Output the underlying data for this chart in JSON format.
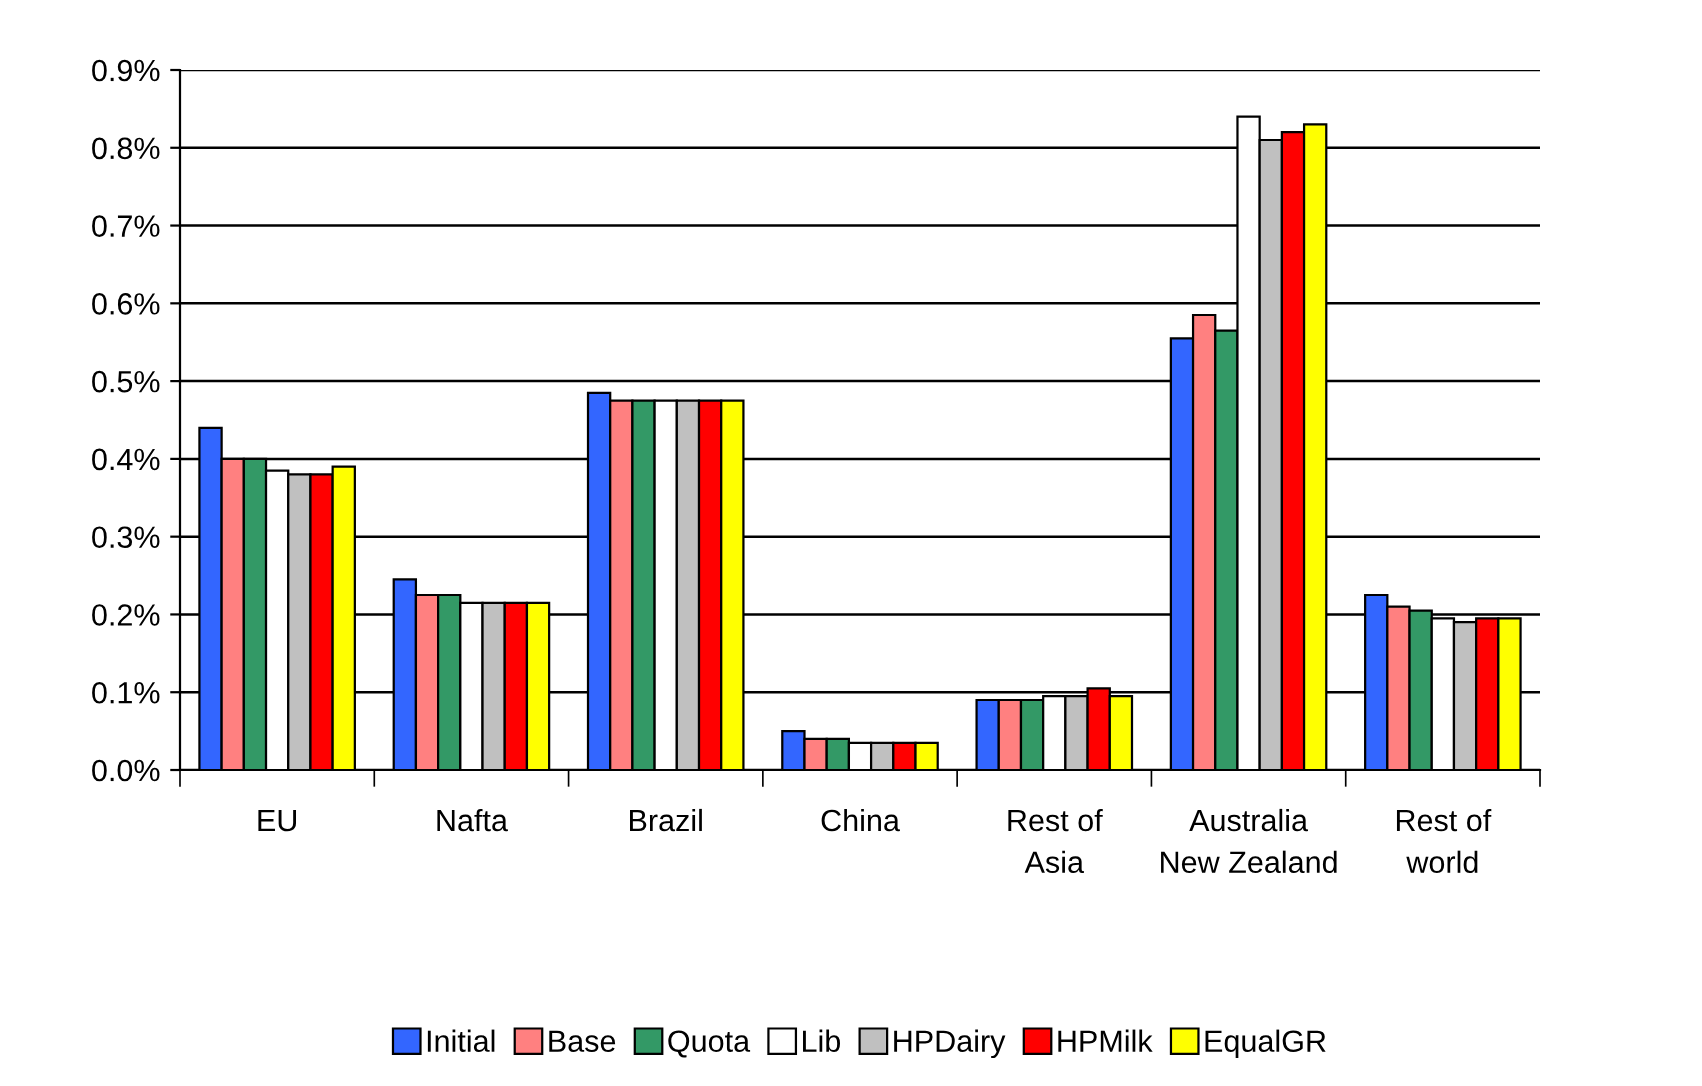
{
  "chart_data": {
    "type": "bar",
    "categories": [
      "EU",
      "Nafta",
      "Brazil",
      "China",
      "Rest of\nAsia",
      "Australia\nNew Zealand",
      "Rest of\nworld"
    ],
    "series": [
      {
        "name": "Initial",
        "color": "#3366ff",
        "values": [
          0.44,
          0.245,
          0.485,
          0.05,
          0.09,
          0.555,
          0.225
        ]
      },
      {
        "name": "Base",
        "color": "#ff8080",
        "values": [
          0.4,
          0.225,
          0.475,
          0.04,
          0.09,
          0.585,
          0.21
        ]
      },
      {
        "name": "Quota",
        "color": "#339966",
        "values": [
          0.4,
          0.225,
          0.475,
          0.04,
          0.09,
          0.565,
          0.205
        ]
      },
      {
        "name": "Lib",
        "color": "#ffffff",
        "values": [
          0.385,
          0.215,
          0.475,
          0.035,
          0.095,
          0.84,
          0.195
        ]
      },
      {
        "name": "HPDairy",
        "color": "#c0c0c0",
        "values": [
          0.38,
          0.215,
          0.475,
          0.035,
          0.095,
          0.81,
          0.19
        ]
      },
      {
        "name": "HPMilk",
        "color": "#ff0000",
        "values": [
          0.38,
          0.215,
          0.475,
          0.035,
          0.105,
          0.82,
          0.195
        ]
      },
      {
        "name": "EqualGR",
        "color": "#ffff00",
        "values": [
          0.39,
          0.215,
          0.475,
          0.035,
          0.095,
          0.83,
          0.195
        ]
      }
    ],
    "ylim": [
      0,
      0.9
    ],
    "yticks": [
      {
        "value": 0,
        "label": "0.0%"
      },
      {
        "value": 0.1,
        "label": "0.1%"
      },
      {
        "value": 0.2,
        "label": "0.2%"
      },
      {
        "value": 0.3,
        "label": "0.3%"
      },
      {
        "value": 0.4,
        "label": "0.4%"
      },
      {
        "value": 0.5,
        "label": "0.5%"
      },
      {
        "value": 0.6,
        "label": "0.6%"
      },
      {
        "value": 0.7,
        "label": "0.7%"
      },
      {
        "value": 0.8,
        "label": "0.8%"
      },
      {
        "value": 0.9,
        "label": "0.9%"
      }
    ],
    "grid": "y",
    "legend": "bottom"
  }
}
